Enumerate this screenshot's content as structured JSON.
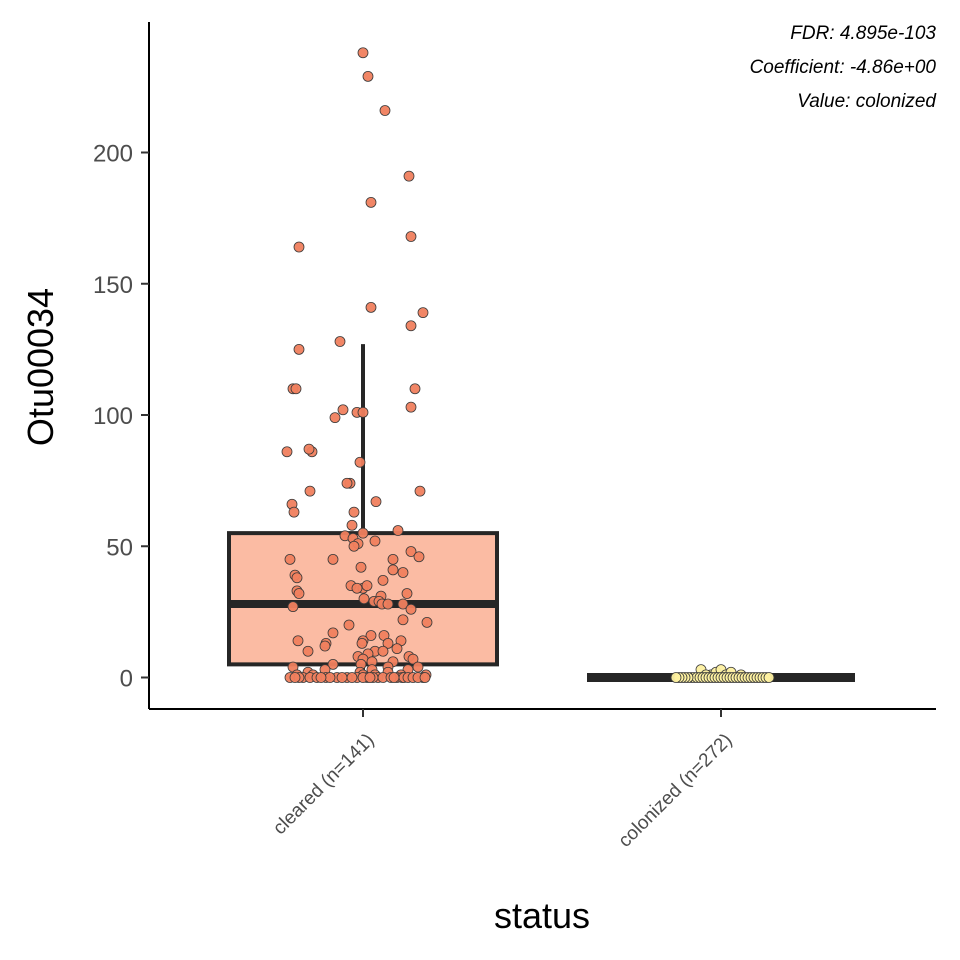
{
  "chart_data": {
    "type": "box",
    "xlabel": "status",
    "ylabel": "Otu00034",
    "ylim": [
      -12,
      240
    ],
    "yticks": [
      0,
      50,
      100,
      150,
      200
    ],
    "grid": false,
    "legend": "none",
    "annotations": [
      "FDR: 4.895e-103",
      "Coefficient: -4.86e+00",
      "Value: colonized"
    ],
    "categories": [
      "cleared (n=141)",
      "colonized (n=272)"
    ],
    "box_style": {
      "line": "#262626"
    },
    "groups": [
      {
        "name": "cleared",
        "fill": "#fbbba3",
        "point_fill": "#f0805e",
        "box": {
          "min": 0,
          "q1": 5,
          "median": 28,
          "q3": 55,
          "whisker_high": 127
        },
        "points": [
          [
            0.0,
            238
          ],
          [
            0.05,
            229
          ],
          [
            0.22,
            216
          ],
          [
            0.46,
            191
          ],
          [
            0.08,
            181
          ],
          [
            -0.64,
            164
          ],
          [
            0.48,
            168
          ],
          [
            0.08,
            141
          ],
          [
            0.6,
            139
          ],
          [
            0.48,
            134
          ],
          [
            -0.23,
            128
          ],
          [
            -0.64,
            125
          ],
          [
            0.52,
            110
          ],
          [
            -0.7,
            110
          ],
          [
            -0.67,
            110
          ],
          [
            0.48,
            103
          ],
          [
            -0.06,
            101
          ],
          [
            0.0,
            101
          ],
          [
            -0.2,
            102
          ],
          [
            -0.28,
            99
          ],
          [
            -0.76,
            86
          ],
          [
            -0.51,
            86
          ],
          [
            -0.54,
            87
          ],
          [
            -0.03,
            82
          ],
          [
            -0.13,
            74
          ],
          [
            -0.16,
            74
          ],
          [
            -0.53,
            71
          ],
          [
            0.57,
            71
          ],
          [
            -0.71,
            66
          ],
          [
            0.13,
            67
          ],
          [
            -0.69,
            63
          ],
          [
            -0.09,
            63
          ],
          [
            -0.11,
            58
          ],
          [
            0.35,
            56
          ],
          [
            0.0,
            55
          ],
          [
            -0.18,
            54
          ],
          [
            -0.1,
            53
          ],
          [
            0.12,
            52
          ],
          [
            -0.05,
            51
          ],
          [
            -0.09,
            50
          ],
          [
            0.48,
            48
          ],
          [
            0.56,
            46
          ],
          [
            0.3,
            45
          ],
          [
            -0.73,
            45
          ],
          [
            -0.3,
            45
          ],
          [
            -0.02,
            42
          ],
          [
            0.3,
            41
          ],
          [
            0.4,
            40
          ],
          [
            -0.68,
            39
          ],
          [
            -0.66,
            38
          ],
          [
            0.2,
            37
          ],
          [
            -0.12,
            35
          ],
          [
            0.0,
            34
          ],
          [
            0.04,
            35
          ],
          [
            -0.06,
            34
          ],
          [
            -0.66,
            33
          ],
          [
            -0.64,
            32
          ],
          [
            0.44,
            32
          ],
          [
            0.18,
            31
          ],
          [
            0.01,
            30
          ],
          [
            0.11,
            29
          ],
          [
            0.16,
            29
          ],
          [
            0.19,
            28
          ],
          [
            -0.7,
            27
          ],
          [
            0.4,
            28
          ],
          [
            0.48,
            26
          ],
          [
            0.64,
            21
          ],
          [
            0.25,
            28
          ],
          [
            0.4,
            22
          ],
          [
            -0.14,
            20
          ],
          [
            -0.3,
            17
          ],
          [
            0.08,
            16
          ],
          [
            0.21,
            16
          ],
          [
            0.0,
            14
          ],
          [
            0.38,
            14
          ],
          [
            0.25,
            13
          ],
          [
            -0.65,
            14
          ],
          [
            -0.01,
            13
          ],
          [
            -0.37,
            13
          ],
          [
            -0.38,
            12
          ],
          [
            0.34,
            11
          ],
          [
            0.12,
            10
          ],
          [
            0.2,
            10
          ],
          [
            -0.55,
            10
          ],
          [
            0.05,
            9
          ],
          [
            -0.05,
            8
          ],
          [
            0.46,
            8
          ],
          [
            0.0,
            7
          ],
          [
            0.5,
            7
          ],
          [
            0.09,
            6
          ],
          [
            0.3,
            6
          ],
          [
            -0.3,
            5
          ],
          [
            -0.02,
            5
          ],
          [
            0.25,
            4
          ],
          [
            0.55,
            4
          ],
          [
            -0.7,
            4
          ],
          [
            0.09,
            3
          ],
          [
            -0.38,
            3
          ],
          [
            0.45,
            3
          ],
          [
            -0.03,
            2
          ],
          [
            -0.55,
            2
          ],
          [
            0.25,
            2
          ],
          [
            -0.66,
            1
          ],
          [
            0.0,
            1
          ],
          [
            0.63,
            1
          ],
          [
            -0.5,
            1
          ],
          [
            0.12,
            1
          ],
          [
            0.38,
            1
          ],
          [
            -0.6,
            0
          ],
          [
            -0.53,
            0
          ],
          [
            -0.73,
            0
          ],
          [
            -0.16,
            0
          ],
          [
            -0.06,
            0
          ],
          [
            0.04,
            0
          ],
          [
            -0.26,
            0
          ],
          [
            0.34,
            0
          ],
          [
            0.39,
            0
          ],
          [
            0.6,
            0
          ],
          [
            0.15,
            0
          ],
          [
            0.41,
            0
          ],
          [
            -0.64,
            0
          ],
          [
            -0.46,
            0
          ],
          [
            -0.37,
            0
          ],
          [
            -0.33,
            0
          ],
          [
            -0.11,
            0
          ],
          [
            0.0,
            0
          ],
          [
            0.1,
            0
          ],
          [
            0.2,
            0
          ],
          [
            0.28,
            0
          ],
          [
            0.45,
            0
          ],
          [
            0.5,
            0
          ],
          [
            0.55,
            0
          ],
          [
            -0.21,
            0
          ],
          [
            -0.42,
            0
          ],
          [
            0.07,
            0
          ],
          [
            -0.68,
            0
          ],
          [
            0.62,
            0
          ],
          [
            0.31,
            0
          ]
        ]
      },
      {
        "name": "colonized",
        "fill": "#ffffcc",
        "point_fill": "#fdf0a0",
        "box": {
          "min": 0,
          "q1": 0,
          "median": 0,
          "q3": 0,
          "whisker_high": 0
        },
        "points": [
          [
            -0.2,
            3
          ],
          [
            -0.1,
            1
          ],
          [
            -0.05,
            2
          ],
          [
            0.0,
            3
          ],
          [
            0.05,
            1
          ],
          [
            0.1,
            2
          ],
          [
            0.2,
            1
          ],
          [
            -0.15,
            1
          ],
          [
            -0.3,
            0
          ],
          [
            -0.27,
            0
          ],
          [
            -0.24,
            0
          ],
          [
            -0.21,
            0
          ],
          [
            -0.18,
            0
          ],
          [
            -0.15,
            0
          ],
          [
            -0.12,
            0
          ],
          [
            -0.09,
            0
          ],
          [
            -0.06,
            0
          ],
          [
            -0.03,
            0
          ],
          [
            0.0,
            0
          ],
          [
            0.03,
            0
          ],
          [
            0.06,
            0
          ],
          [
            0.09,
            0
          ],
          [
            0.12,
            0
          ],
          [
            0.15,
            0
          ],
          [
            0.18,
            0
          ],
          [
            0.21,
            0
          ],
          [
            0.24,
            0
          ],
          [
            0.27,
            0
          ],
          [
            0.3,
            0
          ],
          [
            0.33,
            0
          ],
          [
            -0.33,
            0
          ],
          [
            0.36,
            0
          ],
          [
            -0.36,
            0
          ],
          [
            0.39,
            0
          ],
          [
            -0.39,
            0
          ],
          [
            0.42,
            0
          ],
          [
            -0.42,
            0
          ],
          [
            0.45,
            0
          ],
          [
            -0.45,
            0
          ],
          [
            0.48,
            0
          ]
        ]
      }
    ]
  }
}
